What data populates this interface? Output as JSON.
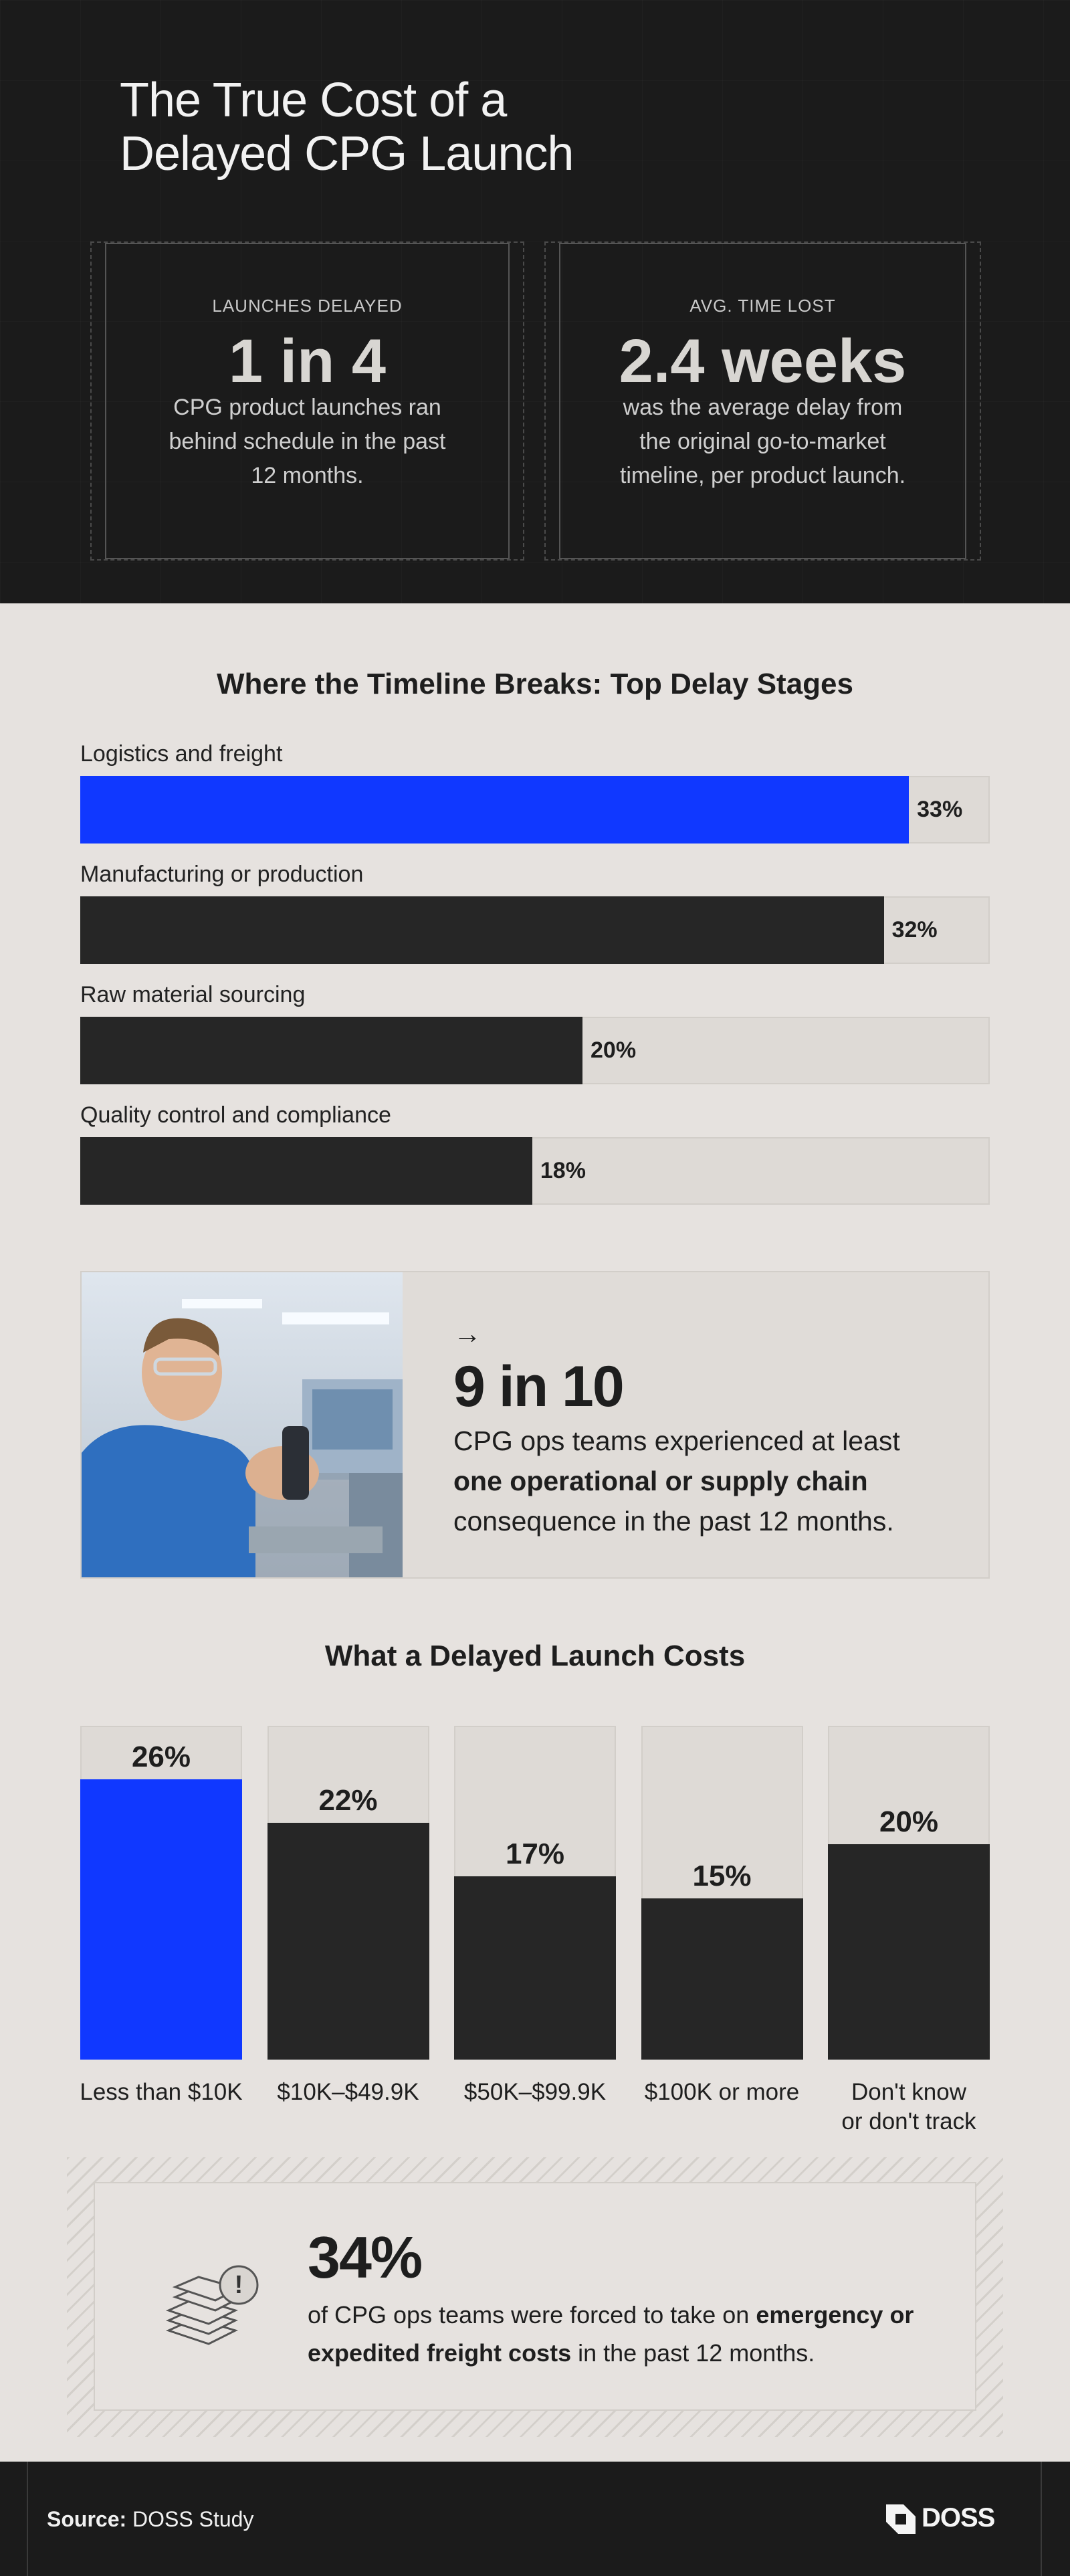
{
  "header": {
    "title": "The True Cost of a\nDelayed CPG Launch"
  },
  "stats": [
    {
      "label": "LAUNCHES DELAYED",
      "value": "1 in 4",
      "description": "CPG product launches ran\nbehind schedule in the past\n12 months."
    },
    {
      "label": "AVG. TIME LOST",
      "value": "2.4 weeks",
      "description": "was the average delay from\nthe original go-to-market\ntimeline, per product launch."
    }
  ],
  "chart_data": [
    {
      "type": "bar",
      "orientation": "horizontal",
      "title": "Where the Timeline Breaks: Top Delay Stages",
      "categories": [
        "Logistics and freight",
        "Manufacturing or production",
        "Raw material sourcing",
        "Quality control and compliance"
      ],
      "values": [
        33,
        32,
        20,
        18
      ],
      "value_labels": [
        "33%",
        "32%",
        "20%",
        "18%"
      ],
      "colors": [
        "#1038ff",
        "#262626",
        "#262626",
        "#262626"
      ]
    },
    {
      "type": "bar",
      "orientation": "vertical",
      "title": "What a Delayed Launch Costs",
      "categories": [
        "Less than $10K",
        "$10K–$49.9K",
        "$50K–$99.9K",
        "$100K or more",
        "Don't know\nor don't track"
      ],
      "values": [
        26,
        22,
        17,
        15,
        20
      ],
      "value_labels": [
        "26%",
        "22%",
        "17%",
        "15%",
        "20%"
      ],
      "colors": [
        "#1038ff",
        "#262626",
        "#262626",
        "#262626",
        "#262626"
      ]
    }
  ],
  "callout": {
    "arrow": "→",
    "value": "9 in 10",
    "line1": "CPG ops teams experienced at least",
    "line2_bold": "one operational or supply chain",
    "line3": "consequence in the past 12 months."
  },
  "freight": {
    "value": "34%",
    "text1": "of CPG ops teams were forced to take on ",
    "bold1": "emergency or",
    "bold2": "expedited freight costs",
    "text2": " in the past 12 months."
  },
  "footer": {
    "source_label": "Source:",
    "source": " DOSS Study",
    "logo": "DOSS"
  }
}
